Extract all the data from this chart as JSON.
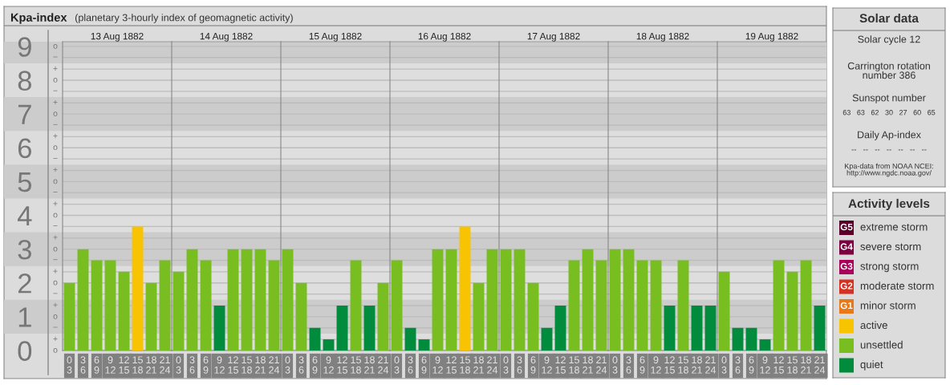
{
  "chart_data": [
    {
      "type": "other",
      "title": "Kpa-index",
      "subtitle": "(planetary 3-hourly index of geomagnetic activity)"
    },
    {
      "type": "bar",
      "title": "13 Aug 1882",
      "categories": [
        "0\n3",
        "3\n6",
        "6\n9",
        "9\n12",
        "12\n15",
        "15\n18",
        "18\n21",
        "21\n24"
      ],
      "values": [
        2,
        3,
        2.67,
        2.67,
        2.33,
        3.67,
        2,
        2.67
      ],
      "colors": [
        "#78be20",
        "#78be20",
        "#78be20",
        "#78be20",
        "#78be20",
        "#f8c300",
        "#78be20",
        "#78be20"
      ],
      "ylim": [
        0,
        9.14
      ],
      "yticks": [
        0,
        {
          "value": 0.33,
          "label": null
        },
        {
          "value": 0.67,
          "label": null
        },
        1,
        {
          "value": 1.33,
          "label": null
        },
        {
          "value": 1.67,
          "label": null
        },
        2,
        {
          "value": 2.33,
          "label": null
        },
        {
          "value": 2.67,
          "label": null
        },
        3,
        {
          "value": 3.33,
          "label": null
        },
        {
          "value": 3.67,
          "label": null
        },
        4,
        {
          "value": 4.33,
          "label": null
        },
        {
          "value": 4.67,
          "label": null
        },
        5,
        {
          "value": 5.33,
          "label": null
        },
        {
          "value": 5.67,
          "label": null
        },
        6,
        {
          "value": 6.33,
          "label": null
        },
        {
          "value": 6.67,
          "label": null
        },
        7,
        {
          "value": 7.33,
          "label": null
        },
        {
          "value": 7.67,
          "label": null
        },
        8,
        {
          "value": 8.33,
          "label": null
        },
        {
          "value": 8.67,
          "label": null
        },
        9
      ],
      "grid": "y",
      "bands": [
        {
          "axis": "y",
          "from": 0.5,
          "to": 1.5,
          "color": "#cccccc"
        },
        {
          "axis": "y",
          "from": 2.5,
          "to": 3.5,
          "color": "#cccccc"
        },
        {
          "axis": "y",
          "from": 4.5,
          "to": 5.5,
          "color": "#cccccc"
        },
        {
          "axis": "y",
          "from": 6.5,
          "to": 7.5,
          "color": "#cccccc"
        },
        {
          "axis": "y",
          "from": 8.5,
          "to": 9.14,
          "color": "#cccccc"
        }
      ],
      "annotations": [
        "o",
        "+",
        "−",
        "o",
        "+",
        "−",
        "o",
        "+",
        "−",
        "o",
        "+",
        "−",
        "o",
        "+",
        "−",
        "o",
        "+",
        "−",
        "o",
        "+",
        "−",
        "o",
        "+",
        "−",
        "o",
        "+",
        "−",
        "o"
      ]
    },
    {
      "type": "bar",
      "title": "14 Aug 1882",
      "categories": [
        "0\n3",
        "3\n6",
        "6\n9",
        "9\n12",
        "12\n15",
        "15\n18",
        "18\n21",
        "21\n24"
      ],
      "values": [
        2.33,
        3,
        2.67,
        1.33,
        3,
        3,
        3,
        2.67
      ],
      "colors": [
        "#78be20",
        "#78be20",
        "#78be20",
        "#008c3c",
        "#78be20",
        "#78be20",
        "#78be20",
        "#78be20"
      ],
      "ylim": [
        0,
        9.14
      ],
      "yticks": [
        0,
        {
          "value": 0.33,
          "label": null
        },
        {
          "value": 0.67,
          "label": null
        },
        1,
        {
          "value": 1.33,
          "label": null
        },
        {
          "value": 1.67,
          "label": null
        },
        2,
        {
          "value": 2.33,
          "label": null
        },
        {
          "value": 2.67,
          "label": null
        },
        3,
        {
          "value": 3.33,
          "label": null
        },
        {
          "value": 3.67,
          "label": null
        },
        4,
        {
          "value": 4.33,
          "label": null
        },
        {
          "value": 4.67,
          "label": null
        },
        5,
        {
          "value": 5.33,
          "label": null
        },
        {
          "value": 5.67,
          "label": null
        },
        6,
        {
          "value": 6.33,
          "label": null
        },
        {
          "value": 6.67,
          "label": null
        },
        7,
        {
          "value": 7.33,
          "label": null
        },
        {
          "value": 7.67,
          "label": null
        },
        8,
        {
          "value": 8.33,
          "label": null
        },
        {
          "value": 8.67,
          "label": null
        },
        9
      ],
      "tick_labels": "x",
      "grid": "y",
      "bands": [
        {
          "axis": "y",
          "from": 0.5,
          "to": 1.5,
          "color": "#cccccc"
        },
        {
          "axis": "y",
          "from": 2.5,
          "to": 3.5,
          "color": "#cccccc"
        },
        {
          "axis": "y",
          "from": 4.5,
          "to": 5.5,
          "color": "#cccccc"
        },
        {
          "axis": "y",
          "from": 6.5,
          "to": 7.5,
          "color": "#cccccc"
        },
        {
          "axis": "y",
          "from": 8.5,
          "to": 9.14,
          "color": "#cccccc"
        }
      ]
    },
    {
      "type": "bar",
      "title": "15 Aug 1882",
      "categories": [
        "0\n3",
        "3\n6",
        "6\n9",
        "9\n12",
        "12\n15",
        "15\n18",
        "18\n21",
        "21\n24"
      ],
      "values": [
        3,
        2,
        0.67,
        0.33,
        1.33,
        2.67,
        1.33,
        2
      ],
      "colors": [
        "#78be20",
        "#78be20",
        "#008c3c",
        "#008c3c",
        "#008c3c",
        "#78be20",
        "#008c3c",
        "#78be20"
      ],
      "ylim": [
        0,
        9.14
      ],
      "yticks": [
        0,
        {
          "value": 0.33,
          "label": null
        },
        {
          "value": 0.67,
          "label": null
        },
        1,
        {
          "value": 1.33,
          "label": null
        },
        {
          "value": 1.67,
          "label": null
        },
        2,
        {
          "value": 2.33,
          "label": null
        },
        {
          "value": 2.67,
          "label": null
        },
        3,
        {
          "value": 3.33,
          "label": null
        },
        {
          "value": 3.67,
          "label": null
        },
        4,
        {
          "value": 4.33,
          "label": null
        },
        {
          "value": 4.67,
          "label": null
        },
        5,
        {
          "value": 5.33,
          "label": null
        },
        {
          "value": 5.67,
          "label": null
        },
        6,
        {
          "value": 6.33,
          "label": null
        },
        {
          "value": 6.67,
          "label": null
        },
        7,
        {
          "value": 7.33,
          "label": null
        },
        {
          "value": 7.67,
          "label": null
        },
        8,
        {
          "value": 8.33,
          "label": null
        },
        {
          "value": 8.67,
          "label": null
        },
        9
      ],
      "tick_labels": "x",
      "grid": "y",
      "bands": [
        {
          "axis": "y",
          "from": 0.5,
          "to": 1.5,
          "color": "#cccccc"
        },
        {
          "axis": "y",
          "from": 2.5,
          "to": 3.5,
          "color": "#cccccc"
        },
        {
          "axis": "y",
          "from": 4.5,
          "to": 5.5,
          "color": "#cccccc"
        },
        {
          "axis": "y",
          "from": 6.5,
          "to": 7.5,
          "color": "#cccccc"
        },
        {
          "axis": "y",
          "from": 8.5,
          "to": 9.14,
          "color": "#cccccc"
        }
      ]
    },
    {
      "type": "bar",
      "title": "16 Aug 1882",
      "categories": [
        "0\n3",
        "3\n6",
        "6\n9",
        "9\n12",
        "12\n15",
        "15\n18",
        "18\n21",
        "21\n24"
      ],
      "values": [
        2.67,
        0.67,
        0.33,
        3,
        3,
        3.67,
        2,
        3
      ],
      "colors": [
        "#78be20",
        "#008c3c",
        "#008c3c",
        "#78be20",
        "#78be20",
        "#f8c300",
        "#78be20",
        "#78be20"
      ],
      "ylim": [
        0,
        9.14
      ],
      "yticks": [
        0,
        {
          "value": 0.33,
          "label": null
        },
        {
          "value": 0.67,
          "label": null
        },
        1,
        {
          "value": 1.33,
          "label": null
        },
        {
          "value": 1.67,
          "label": null
        },
        2,
        {
          "value": 2.33,
          "label": null
        },
        {
          "value": 2.67,
          "label": null
        },
        3,
        {
          "value": 3.33,
          "label": null
        },
        {
          "value": 3.67,
          "label": null
        },
        4,
        {
          "value": 4.33,
          "label": null
        },
        {
          "value": 4.67,
          "label": null
        },
        5,
        {
          "value": 5.33,
          "label": null
        },
        {
          "value": 5.67,
          "label": null
        },
        6,
        {
          "value": 6.33,
          "label": null
        },
        {
          "value": 6.67,
          "label": null
        },
        7,
        {
          "value": 7.33,
          "label": null
        },
        {
          "value": 7.67,
          "label": null
        },
        8,
        {
          "value": 8.33,
          "label": null
        },
        {
          "value": 8.67,
          "label": null
        },
        9
      ],
      "tick_labels": "x",
      "grid": "y",
      "bands": [
        {
          "axis": "y",
          "from": 0.5,
          "to": 1.5,
          "color": "#cccccc"
        },
        {
          "axis": "y",
          "from": 2.5,
          "to": 3.5,
          "color": "#cccccc"
        },
        {
          "axis": "y",
          "from": 4.5,
          "to": 5.5,
          "color": "#cccccc"
        },
        {
          "axis": "y",
          "from": 6.5,
          "to": 7.5,
          "color": "#cccccc"
        },
        {
          "axis": "y",
          "from": 8.5,
          "to": 9.14,
          "color": "#cccccc"
        }
      ]
    },
    {
      "type": "bar",
      "title": "17 Aug 1882",
      "categories": [
        "0\n3",
        "3\n6",
        "6\n9",
        "9\n12",
        "12\n15",
        "15\n18",
        "18\n21",
        "21\n24"
      ],
      "values": [
        3,
        3,
        2,
        0.67,
        1.33,
        2.67,
        3,
        2.67
      ],
      "colors": [
        "#78be20",
        "#78be20",
        "#78be20",
        "#008c3c",
        "#008c3c",
        "#78be20",
        "#78be20",
        "#78be20"
      ],
      "ylim": [
        0,
        9.14
      ],
      "yticks": [
        0,
        {
          "value": 0.33,
          "label": null
        },
        {
          "value": 0.67,
          "label": null
        },
        1,
        {
          "value": 1.33,
          "label": null
        },
        {
          "value": 1.67,
          "label": null
        },
        2,
        {
          "value": 2.33,
          "label": null
        },
        {
          "value": 2.67,
          "label": null
        },
        3,
        {
          "value": 3.33,
          "label": null
        },
        {
          "value": 3.67,
          "label": null
        },
        4,
        {
          "value": 4.33,
          "label": null
        },
        {
          "value": 4.67,
          "label": null
        },
        5,
        {
          "value": 5.33,
          "label": null
        },
        {
          "value": 5.67,
          "label": null
        },
        6,
        {
          "value": 6.33,
          "label": null
        },
        {
          "value": 6.67,
          "label": null
        },
        7,
        {
          "value": 7.33,
          "label": null
        },
        {
          "value": 7.67,
          "label": null
        },
        8,
        {
          "value": 8.33,
          "label": null
        },
        {
          "value": 8.67,
          "label": null
        },
        9
      ],
      "tick_labels": "x",
      "grid": "y",
      "bands": [
        {
          "axis": "y",
          "from": 0.5,
          "to": 1.5,
          "color": "#cccccc"
        },
        {
          "axis": "y",
          "from": 2.5,
          "to": 3.5,
          "color": "#cccccc"
        },
        {
          "axis": "y",
          "from": 4.5,
          "to": 5.5,
          "color": "#cccccc"
        },
        {
          "axis": "y",
          "from": 6.5,
          "to": 7.5,
          "color": "#cccccc"
        },
        {
          "axis": "y",
          "from": 8.5,
          "to": 9.14,
          "color": "#cccccc"
        }
      ]
    },
    {
      "type": "bar",
      "title": "18 Aug 1882",
      "categories": [
        "0\n3",
        "3\n6",
        "6\n9",
        "9\n12",
        "12\n15",
        "15\n18",
        "18\n21",
        "21\n24"
      ],
      "values": [
        3,
        3,
        2.67,
        2.67,
        1.33,
        2.67,
        1.33,
        1.33
      ],
      "colors": [
        "#78be20",
        "#78be20",
        "#78be20",
        "#78be20",
        "#008c3c",
        "#78be20",
        "#008c3c",
        "#008c3c"
      ],
      "ylim": [
        0,
        9.14
      ],
      "yticks": [
        0,
        {
          "value": 0.33,
          "label": null
        },
        {
          "value": 0.67,
          "label": null
        },
        1,
        {
          "value": 1.33,
          "label": null
        },
        {
          "value": 1.67,
          "label": null
        },
        2,
        {
          "value": 2.33,
          "label": null
        },
        {
          "value": 2.67,
          "label": null
        },
        3,
        {
          "value": 3.33,
          "label": null
        },
        {
          "value": 3.67,
          "label": null
        },
        4,
        {
          "value": 4.33,
          "label": null
        },
        {
          "value": 4.67,
          "label": null
        },
        5,
        {
          "value": 5.33,
          "label": null
        },
        {
          "value": 5.67,
          "label": null
        },
        6,
        {
          "value": 6.33,
          "label": null
        },
        {
          "value": 6.67,
          "label": null
        },
        7,
        {
          "value": 7.33,
          "label": null
        },
        {
          "value": 7.67,
          "label": null
        },
        8,
        {
          "value": 8.33,
          "label": null
        },
        {
          "value": 8.67,
          "label": null
        },
        9
      ],
      "tick_labels": "x",
      "grid": "y",
      "bands": [
        {
          "axis": "y",
          "from": 0.5,
          "to": 1.5,
          "color": "#cccccc"
        },
        {
          "axis": "y",
          "from": 2.5,
          "to": 3.5,
          "color": "#cccccc"
        },
        {
          "axis": "y",
          "from": 4.5,
          "to": 5.5,
          "color": "#cccccc"
        },
        {
          "axis": "y",
          "from": 6.5,
          "to": 7.5,
          "color": "#cccccc"
        },
        {
          "axis": "y",
          "from": 8.5,
          "to": 9.14,
          "color": "#cccccc"
        }
      ]
    },
    {
      "type": "bar",
      "title": "19 Aug 1882",
      "categories": [
        "0\n3",
        "3\n6",
        "6\n9",
        "9\n12",
        "12\n15",
        "15\n18",
        "18\n21",
        "21\n24"
      ],
      "values": [
        2.33,
        0.67,
        0.67,
        0.33,
        2.67,
        2.33,
        2.67,
        1.33
      ],
      "colors": [
        "#78be20",
        "#008c3c",
        "#008c3c",
        "#008c3c",
        "#78be20",
        "#78be20",
        "#78be20",
        "#008c3c"
      ],
      "ylim": [
        0,
        9.14
      ],
      "yticks": [
        0,
        {
          "value": 0.33,
          "label": null
        },
        {
          "value": 0.67,
          "label": null
        },
        1,
        {
          "value": 1.33,
          "label": null
        },
        {
          "value": 1.67,
          "label": null
        },
        2,
        {
          "value": 2.33,
          "label": null
        },
        {
          "value": 2.67,
          "label": null
        },
        3,
        {
          "value": 3.33,
          "label": null
        },
        {
          "value": 3.67,
          "label": null
        },
        4,
        {
          "value": 4.33,
          "label": null
        },
        {
          "value": 4.67,
          "label": null
        },
        5,
        {
          "value": 5.33,
          "label": null
        },
        {
          "value": 5.67,
          "label": null
        },
        6,
        {
          "value": 6.33,
          "label": null
        },
        {
          "value": 6.67,
          "label": null
        },
        7,
        {
          "value": 7.33,
          "label": null
        },
        {
          "value": 7.67,
          "label": null
        },
        8,
        {
          "value": 8.33,
          "label": null
        },
        {
          "value": 8.67,
          "label": null
        },
        9
      ],
      "tick_labels": "x",
      "grid": "y",
      "bands": [
        {
          "axis": "y",
          "from": 0.5,
          "to": 1.5,
          "color": "#cccccc"
        },
        {
          "axis": "y",
          "from": 2.5,
          "to": 3.5,
          "color": "#cccccc"
        },
        {
          "axis": "y",
          "from": 4.5,
          "to": 5.5,
          "color": "#cccccc"
        },
        {
          "axis": "y",
          "from": 6.5,
          "to": 7.5,
          "color": "#cccccc"
        },
        {
          "axis": "y",
          "from": 8.5,
          "to": 9.14,
          "color": "#cccccc"
        }
      ]
    },
    {
      "type": "other",
      "title": "Solar data",
      "annotations": [
        "Solar cycle 12",
        "Carrington rotation\nnumber 386",
        "Sunspot number",
        "63   63   62   30   27   60   65",
        "Daily Ap-index",
        "--   --   --   --   --   --   --",
        "Kpa-data from NOAA NCEI:\nhttp://www.ngdc.noaa.gov/"
      ]
    },
    {
      "type": "other",
      "title": "Activity levels",
      "categories": [
        "extreme storm",
        "severe storm",
        "strong storm",
        "moderate storm",
        "minor storm",
        "active",
        "unsettled",
        "quiet"
      ],
      "colors": [
        "#5a0028",
        "#7a0040",
        "#a8005a",
        "#d83020",
        "#e87818",
        "#f8c300",
        "#78be20",
        "#008c3c"
      ],
      "annotations": [
        "G5",
        "G4",
        "G3",
        "G2",
        "G1"
      ]
    }
  ]
}
